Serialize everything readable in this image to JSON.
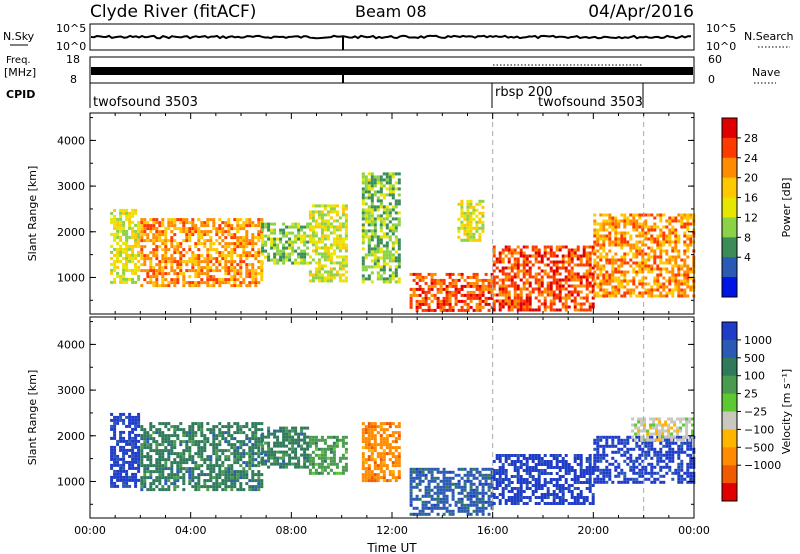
{
  "header": {
    "title": "Clyde River (fitACF)",
    "beam": "Beam 08",
    "date": "04/Apr/2016"
  },
  "strip_labels": {
    "nsky": "N.Sky",
    "freq_line1": "Freq.",
    "freq_line2": "[MHz]",
    "cpid": "CPID",
    "nsearch": "N.Search",
    "nave": "Nave"
  },
  "strip_ticks": {
    "nsky_left": [
      "10^5",
      "10^0"
    ],
    "nsky_right": [
      "10^5",
      "10^0"
    ],
    "freq_left": [
      "18",
      "8"
    ],
    "freq_right": [
      "60",
      "0"
    ]
  },
  "cpid": {
    "segments": [
      {
        "label": "twofsound 3503",
        "start_hour": 0,
        "end_hour": 16
      },
      {
        "label": "rbsp 200",
        "start_hour": 16,
        "end_hour": 22
      },
      {
        "label": "twofsound 3503",
        "start_hour": 16,
        "end_hour": 22
      }
    ]
  },
  "chart_data": [
    {
      "type": "heatmap",
      "name": "power",
      "ylabel": "Slant Range [km]",
      "y_ticks": [
        "1000",
        "2000",
        "3000",
        "4000"
      ],
      "y_tick_values": [
        1000,
        2000,
        3000,
        4000
      ],
      "ylim": [
        200,
        4600
      ],
      "x_ticks": [
        "00:00",
        "04:00",
        "08:00",
        "12:00",
        "16:00",
        "20:00",
        "00:00"
      ],
      "xlim": [
        0,
        24
      ],
      "colorbar_label": "Power [dB]",
      "colorbar_ticks": [
        "28",
        "24",
        "20",
        "16",
        "12",
        "8",
        "4"
      ],
      "colorbar_colors": [
        "#e00000",
        "#ff3a00",
        "#ff8c00",
        "#ffc800",
        "#e6e600",
        "#8cd246",
        "#3c8c5a",
        "#2a5ab4",
        "#0014e6"
      ],
      "data_regions": [
        {
          "start_hour": 0.8,
          "end_hour": 1.9,
          "range_min": 900,
          "range_max": 2500,
          "value": 14
        },
        {
          "start_hour": 2.0,
          "end_hour": 6.8,
          "range_min": 800,
          "range_max": 2300,
          "value": 22
        },
        {
          "start_hour": 6.8,
          "end_hour": 8.7,
          "range_min": 1300,
          "range_max": 2200,
          "value": 10
        },
        {
          "start_hour": 8.7,
          "end_hour": 10.2,
          "range_min": 900,
          "range_max": 2600,
          "value": 14
        },
        {
          "start_hour": 10.8,
          "end_hour": 12.3,
          "range_min": 900,
          "range_max": 3300,
          "value": 12
        },
        {
          "start_hour": 12.7,
          "end_hour": 16.0,
          "range_min": 250,
          "range_max": 1100,
          "value": 28
        },
        {
          "start_hour": 14.6,
          "end_hour": 15.6,
          "range_min": 1800,
          "range_max": 2700,
          "value": 14
        },
        {
          "start_hour": 16.0,
          "end_hour": 20.0,
          "range_min": 300,
          "range_max": 1700,
          "value": 26
        },
        {
          "start_hour": 20.0,
          "end_hour": 24.0,
          "range_min": 600,
          "range_max": 2400,
          "value": 22
        }
      ]
    },
    {
      "type": "heatmap",
      "name": "velocity",
      "ylabel": "Slant Range [km]",
      "y_ticks": [
        "1000",
        "2000",
        "3000",
        "4000"
      ],
      "y_tick_values": [
        1000,
        2000,
        3000,
        4000
      ],
      "ylim": [
        200,
        4600
      ],
      "xlabel": "Time UT",
      "x_ticks": [
        "00:00",
        "04:00",
        "08:00",
        "12:00",
        "16:00",
        "20:00",
        "00:00"
      ],
      "xlim": [
        0,
        24
      ],
      "colorbar_label": "Velocity [m s⁻¹]",
      "colorbar_ticks": [
        "1000",
        "500",
        "100",
        "25",
        "−25",
        "−100",
        "−500",
        "−1000"
      ],
      "colorbar_colors": [
        "#1e3cc8",
        "#2a5ab4",
        "#2f7a5a",
        "#4a9a50",
        "#5cc832",
        "#c8c8be",
        "#ffb400",
        "#ff8c00",
        "#f05a00",
        "#e00000"
      ],
      "data_regions": [
        {
          "start_hour": 0.8,
          "end_hour": 1.9,
          "range_min": 900,
          "range_max": 2500,
          "value": 800
        },
        {
          "start_hour": 2.0,
          "end_hour": 6.8,
          "range_min": 800,
          "range_max": 2300,
          "value": 150
        },
        {
          "start_hour": 6.8,
          "end_hour": 8.7,
          "range_min": 1300,
          "range_max": 2200,
          "value": 150
        },
        {
          "start_hour": 8.7,
          "end_hour": 10.2,
          "range_min": 1200,
          "range_max": 2000,
          "value": 50
        },
        {
          "start_hour": 10.8,
          "end_hour": 12.3,
          "range_min": 1000,
          "range_max": 2300,
          "value": -300
        },
        {
          "start_hour": 12.7,
          "end_hour": 16.0,
          "range_min": 300,
          "range_max": 1300,
          "value": 300
        },
        {
          "start_hour": 16.0,
          "end_hour": 20.0,
          "range_min": 500,
          "range_max": 1600,
          "value": 800
        },
        {
          "start_hour": 20.0,
          "end_hour": 24.0,
          "range_min": 1000,
          "range_max": 2000,
          "value": 900
        },
        {
          "start_hour": 21.5,
          "end_hour": 24.0,
          "range_min": 1900,
          "range_max": 2400,
          "value": 0
        }
      ]
    }
  ]
}
